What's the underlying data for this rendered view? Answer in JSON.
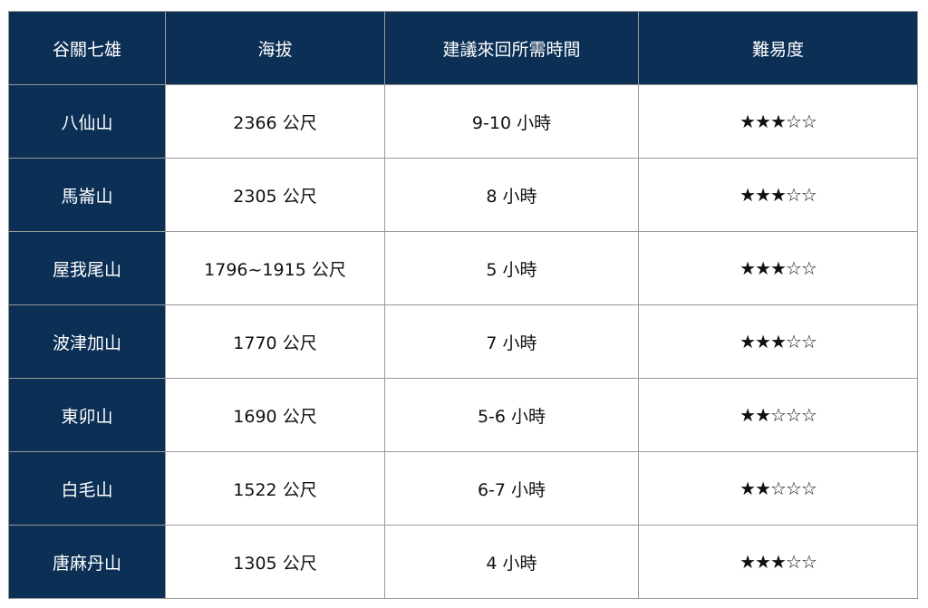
{
  "table": {
    "headers": [
      "谷關七雄",
      "海拔",
      "建議來回所需時間",
      "難易度"
    ],
    "header_color": "#0b2f55",
    "rows": [
      {
        "name": "八仙山",
        "altitude": "2366 公尺",
        "time": "9-10 小時",
        "difficulty": "★★★☆☆",
        "rating": 3
      },
      {
        "name": "馬崙山",
        "altitude": "2305 公尺",
        "time": "8 小時",
        "difficulty": "★★★☆☆",
        "rating": 3
      },
      {
        "name": "屋我尾山",
        "altitude": "1796~1915 公尺",
        "time": "5 小時",
        "difficulty": "★★★☆☆",
        "rating": 3
      },
      {
        "name": "波津加山",
        "altitude": "1770 公尺",
        "time": "7 小時",
        "difficulty": "★★★☆☆",
        "rating": 3
      },
      {
        "name": "東卯山",
        "altitude": "1690 公尺",
        "time": "5-6 小時",
        "difficulty": "★★☆☆☆",
        "rating": 2
      },
      {
        "name": "白毛山",
        "altitude": "1522 公尺",
        "time": "6-7 小時",
        "difficulty": "★★☆☆☆",
        "rating": 2
      },
      {
        "name": "唐麻丹山",
        "altitude": "1305 公尺",
        "time": "4 小時",
        "difficulty": "★★★☆☆",
        "rating": 3
      }
    ]
  }
}
